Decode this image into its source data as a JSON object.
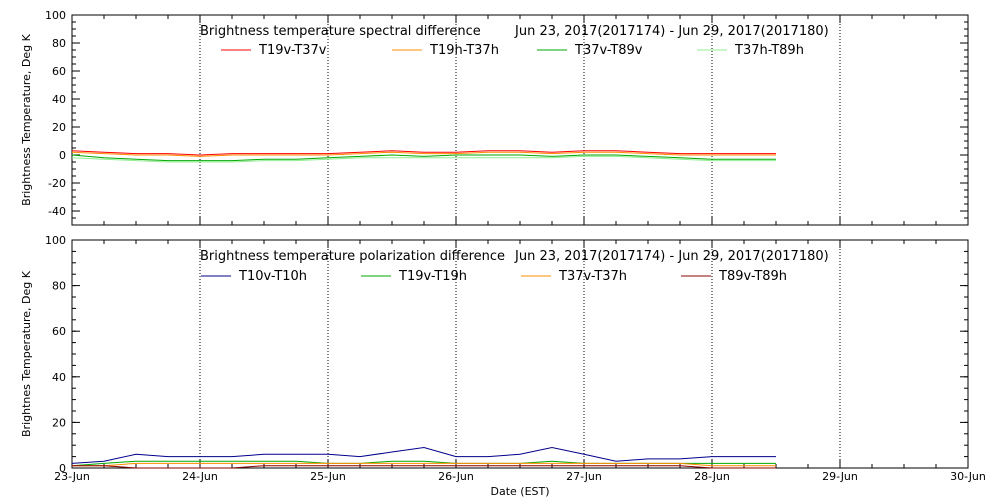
{
  "chart_data": [
    {
      "type": "line",
      "title": "Brightness temperature spectral difference",
      "date_range": "Jun 23, 2017(2017174) - Jun 29, 2017(2017180)",
      "ylabel": "Brightness Temperature, Deg K",
      "xlabel": "",
      "ylim": [
        -50,
        100
      ],
      "yticks": [
        -40,
        -20,
        0,
        20,
        40,
        60,
        80,
        100
      ],
      "xlim": [
        "2017-06-23",
        "2017-06-30"
      ],
      "xticks": [
        "23-Jun",
        "24-Jun",
        "25-Jun",
        "26-Jun",
        "27-Jun",
        "28-Jun",
        "29-Jun",
        "30-Jun"
      ],
      "grid": true,
      "legend_position": "top",
      "series": [
        {
          "name": "T19v-T37v",
          "color": "#ff0000",
          "x": [
            0,
            0.25,
            0.5,
            0.75,
            1.0,
            1.25,
            1.5,
            1.75,
            2.0,
            2.25,
            2.5,
            2.75,
            3.0,
            3.25,
            3.5,
            3.75,
            4.0,
            4.25,
            4.5,
            4.75,
            5.0,
            5.25,
            5.5
          ],
          "y": [
            3,
            2,
            1,
            1,
            0,
            1,
            1,
            1,
            1,
            2,
            3,
            2,
            2,
            3,
            3,
            2,
            3,
            3,
            2,
            1,
            1,
            1,
            1
          ]
        },
        {
          "name": "T19h-T37h",
          "color": "#ff8c00",
          "x": [
            0,
            0.25,
            0.5,
            0.75,
            1.0,
            1.25,
            1.5,
            1.75,
            2.0,
            2.25,
            2.5,
            2.75,
            3.0,
            3.25,
            3.5,
            3.75,
            4.0,
            4.25,
            4.5,
            4.75,
            5.0,
            5.25,
            5.5
          ],
          "y": [
            2,
            1,
            0,
            0,
            -1,
            0,
            0,
            0,
            0,
            1,
            2,
            1,
            1,
            2,
            2,
            1,
            2,
            2,
            1,
            0,
            0,
            0,
            0
          ]
        },
        {
          "name": "T37v-T89v",
          "color": "#00aa00",
          "x": [
            0,
            0.25,
            0.5,
            0.75,
            1.0,
            1.25,
            1.5,
            1.75,
            2.0,
            2.25,
            2.5,
            2.75,
            3.0,
            3.25,
            3.5,
            3.75,
            4.0,
            4.25,
            4.5,
            4.75,
            5.0,
            5.25,
            5.5
          ],
          "y": [
            0,
            -2,
            -3,
            -4,
            -4,
            -4,
            -3,
            -3,
            -2,
            -1,
            0,
            -1,
            0,
            0,
            0,
            -1,
            0,
            0,
            -1,
            -2,
            -3,
            -3,
            -3
          ]
        },
        {
          "name": "T37h-T89h",
          "color": "#90ee90",
          "x": [
            0,
            0.25,
            0.5,
            0.75,
            1.0,
            1.25,
            1.5,
            1.75,
            2.0,
            2.25,
            2.5,
            2.75,
            3.0,
            3.25,
            3.5,
            3.75,
            4.0,
            4.25,
            4.5,
            4.75,
            5.0,
            5.25,
            5.5
          ],
          "y": [
            -2,
            -3,
            -4,
            -5,
            -5,
            -5,
            -4,
            -4,
            -3,
            -2,
            -2,
            -2,
            -2,
            -2,
            -2,
            -2,
            -1,
            -1,
            -2,
            -3,
            -4,
            -4,
            -4
          ]
        }
      ]
    },
    {
      "type": "line",
      "title": "Brightness temperature polarization difference",
      "date_range": "Jun 23, 2017(2017174) - Jun 29, 2017(2017180)",
      "ylabel": "Brightnes Temperature, Deg K",
      "xlabel": "Date (EST)",
      "ylim": [
        0,
        100
      ],
      "yticks": [
        0,
        20,
        40,
        60,
        80,
        100
      ],
      "xlim": [
        "2017-06-23",
        "2017-06-30"
      ],
      "xticks": [
        "23-Jun",
        "24-Jun",
        "25-Jun",
        "26-Jun",
        "27-Jun",
        "28-Jun",
        "29-Jun",
        "30-Jun"
      ],
      "grid": true,
      "legend_position": "top",
      "series": [
        {
          "name": "T10v-T10h",
          "color": "#00008b",
          "x": [
            0,
            0.25,
            0.5,
            0.75,
            1.0,
            1.25,
            1.5,
            1.75,
            2.0,
            2.25,
            2.5,
            2.75,
            3.0,
            3.25,
            3.5,
            3.75,
            4.0,
            4.25,
            4.5,
            4.75,
            5.0,
            5.25,
            5.5
          ],
          "y": [
            2,
            3,
            6,
            5,
            5,
            5,
            6,
            6,
            6,
            5,
            7,
            9,
            5,
            5,
            6,
            9,
            6,
            3,
            4,
            4,
            5,
            5,
            5
          ]
        },
        {
          "name": "T19v-T19h",
          "color": "#00aa00",
          "x": [
            0,
            0.25,
            0.5,
            0.75,
            1.0,
            1.25,
            1.5,
            1.75,
            2.0,
            2.25,
            2.5,
            2.75,
            3.0,
            3.25,
            3.5,
            3.75,
            4.0,
            4.25,
            4.5,
            4.75,
            5.0,
            5.25,
            5.5
          ],
          "y": [
            1,
            2,
            3,
            3,
            3,
            3,
            3,
            3,
            2,
            2,
            3,
            3,
            2,
            2,
            2,
            3,
            2,
            2,
            2,
            2,
            2,
            2,
            2
          ]
        },
        {
          "name": "T37v-T37h",
          "color": "#ff8c00",
          "x": [
            0,
            0.25,
            0.5,
            0.75,
            1.0,
            1.25,
            1.5,
            1.75,
            2.0,
            2.25,
            2.5,
            2.75,
            3.0,
            3.25,
            3.5,
            3.75,
            4.0,
            4.25,
            4.5,
            4.75,
            5.0,
            5.25,
            5.5
          ],
          "y": [
            1,
            1,
            2,
            2,
            2,
            2,
            2,
            2,
            2,
            2,
            2,
            2,
            2,
            2,
            2,
            2,
            2,
            2,
            2,
            2,
            1,
            1,
            1
          ]
        },
        {
          "name": "T89v-T89h",
          "color": "#8b0000",
          "x": [
            0,
            0.25,
            0.5,
            0.75,
            1.0,
            1.25,
            1.5,
            1.75,
            2.0,
            2.25,
            2.5,
            2.75,
            3.0,
            3.25,
            3.5,
            3.75,
            4.0,
            4.25,
            4.5,
            4.75,
            5.0,
            5.25,
            5.5
          ],
          "y": [
            1,
            1,
            0,
            0,
            0,
            0,
            1,
            1,
            1,
            1,
            1,
            1,
            1,
            1,
            1,
            1,
            1,
            1,
            1,
            1,
            0,
            0,
            0
          ]
        }
      ]
    }
  ]
}
